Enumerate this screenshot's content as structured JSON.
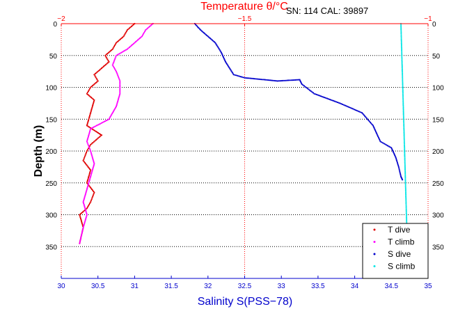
{
  "chart_data": {
    "type": "scatter",
    "title": "Temperature θ/°C",
    "annotation": "SN: 114  CAL: 39897",
    "xlabel": "Salinity S(PSS−78)",
    "ylabel": "Depth (m)",
    "xlim": [
      30,
      35
    ],
    "x2lim": [
      -2,
      -1
    ],
    "ylim": [
      0,
      400
    ],
    "y_reversed": true,
    "x_ticks": [
      "30",
      "30.5",
      "31",
      "31.5",
      "32",
      "32.5",
      "33",
      "33.5",
      "34",
      "34.5",
      "35"
    ],
    "x2_ticks": [
      "−2",
      "−1.5",
      "−1"
    ],
    "y_ticks": [
      "0",
      "50",
      "100",
      "150",
      "200",
      "250",
      "300",
      "350"
    ],
    "grid": "dotted",
    "legend_position": "bottom-right",
    "colors": {
      "t_dive": "#e00000",
      "t_climb": "#ff00ff",
      "s_dive": "#0000cc",
      "s_climb": "#00e5e5",
      "axis": "#0000cc",
      "top_axis": "#ff0000"
    },
    "series": [
      {
        "name": "T dive",
        "axis": "temperature",
        "x": [
          -1.8,
          -1.82,
          -1.83,
          -1.85,
          -1.86,
          -1.88,
          -1.87,
          -1.89,
          -1.91,
          -1.9,
          -1.92,
          -1.93,
          -1.91,
          -1.92,
          -1.93,
          -1.89,
          -1.92,
          -1.93,
          -1.94,
          -1.92,
          -1.93,
          -1.91,
          -1.92,
          -1.93,
          -1.95,
          -1.94,
          -1.95
        ],
        "y": [
          0,
          10,
          20,
          30,
          40,
          50,
          60,
          70,
          80,
          90,
          100,
          110,
          120,
          140,
          160,
          175,
          190,
          200,
          215,
          230,
          250,
          265,
          280,
          290,
          300,
          320,
          345
        ]
      },
      {
        "name": "T climb",
        "axis": "temperature",
        "x": [
          -1.75,
          -1.77,
          -1.78,
          -1.8,
          -1.82,
          -1.85,
          -1.86,
          -1.85,
          -1.84,
          -1.84,
          -1.85,
          -1.87,
          -1.92,
          -1.93,
          -1.92,
          -1.91,
          -1.92,
          -1.93,
          -1.94,
          -1.93,
          -1.94,
          -1.95
        ],
        "y": [
          0,
          10,
          20,
          30,
          40,
          50,
          65,
          75,
          90,
          110,
          130,
          150,
          165,
          185,
          200,
          220,
          240,
          260,
          280,
          300,
          320,
          345
        ]
      },
      {
        "name": "S dive",
        "axis": "salinity",
        "x": [
          31.82,
          31.9,
          32.0,
          32.1,
          32.18,
          32.24,
          32.35,
          32.5,
          32.95,
          33.25,
          33.28,
          33.45,
          33.8,
          34.1,
          34.25,
          34.35,
          34.5,
          34.56,
          34.6,
          34.63,
          34.65
        ],
        "y": [
          0,
          10,
          20,
          30,
          45,
          60,
          80,
          85,
          90,
          88,
          95,
          110,
          125,
          140,
          160,
          185,
          195,
          210,
          225,
          240,
          245
        ]
      },
      {
        "name": "S climb",
        "axis": "salinity",
        "x": [
          34.63,
          34.64,
          34.65,
          34.66,
          34.67,
          34.68,
          34.69,
          34.7,
          34.71,
          34.72
        ],
        "y": [
          0,
          40,
          80,
          120,
          160,
          200,
          240,
          280,
          320,
          345
        ]
      }
    ]
  }
}
